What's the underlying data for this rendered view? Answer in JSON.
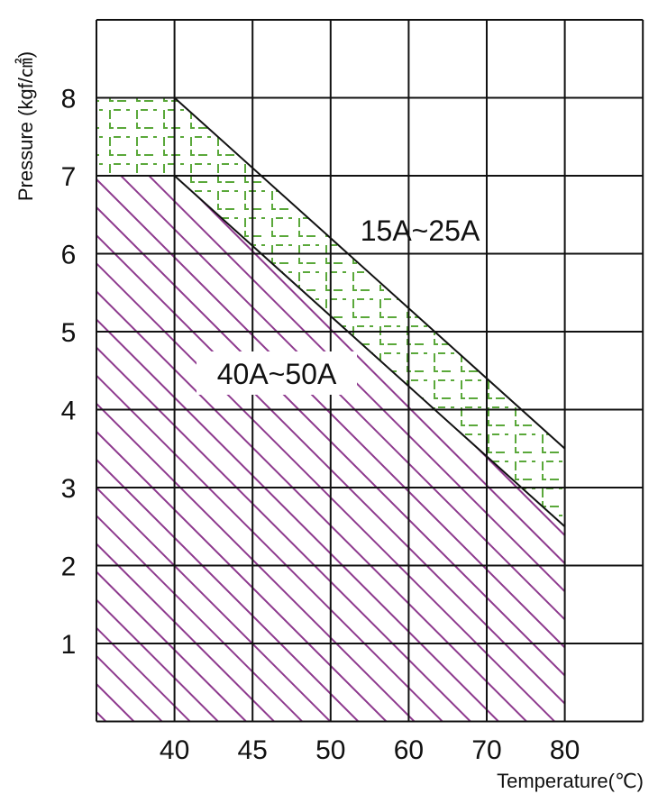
{
  "chart_data": {
    "type": "area",
    "xlabel": "Temperature(℃)",
    "ylabel": "Pressure (kgf/㎠)",
    "x_ticks": [
      "40",
      "45",
      "50",
      "60",
      "70",
      "80"
    ],
    "y_ticks": [
      "1",
      "2",
      "3",
      "4",
      "5",
      "6",
      "7",
      "8"
    ],
    "ylim": [
      0,
      9
    ],
    "grid": true,
    "series": [
      {
        "name": "15A~25A",
        "color": "#5aa83a",
        "hatch": "dashed-grid",
        "boundary": [
          {
            "x": "40",
            "y": 8
          },
          {
            "x": "80",
            "y": 3.5
          }
        ]
      },
      {
        "name": "40A~50A",
        "color": "#8e3a8e",
        "hatch": "diagonal",
        "boundary": [
          {
            "x": "40",
            "y": 7
          },
          {
            "x": "80",
            "y": 2.5
          }
        ]
      }
    ],
    "annotations": [
      {
        "text": "15A~25A"
      },
      {
        "text": "40A~50A"
      }
    ]
  }
}
